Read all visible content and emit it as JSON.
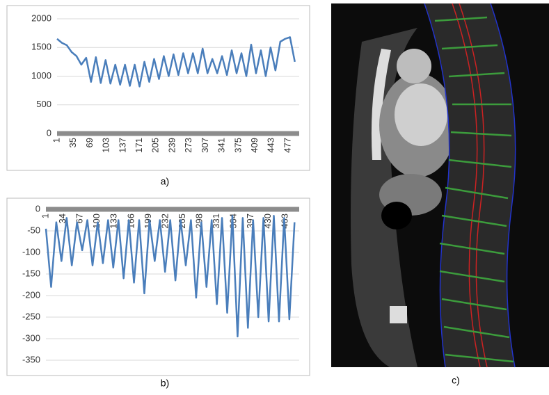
{
  "chart_data": [
    {
      "type": "line",
      "caption": "a)",
      "color": "#4a7ebb",
      "grid": true,
      "ylim": [
        0,
        2000
      ],
      "yticks": [
        0,
        500,
        1000,
        1500,
        2000
      ],
      "xlim": [
        1,
        500
      ],
      "xticks": [
        1,
        35,
        69,
        103,
        137,
        171,
        205,
        239,
        273,
        307,
        341,
        375,
        409,
        443,
        477
      ],
      "x": [
        1,
        11,
        21,
        31,
        41,
        51,
        61,
        71,
        81,
        91,
        101,
        111,
        121,
        131,
        141,
        151,
        161,
        171,
        181,
        191,
        201,
        211,
        221,
        231,
        241,
        251,
        261,
        271,
        281,
        291,
        301,
        311,
        321,
        331,
        341,
        351,
        361,
        371,
        381,
        391,
        401,
        411,
        421,
        431,
        441,
        451,
        461,
        471,
        481,
        491
      ],
      "values": [
        1650,
        1580,
        1540,
        1420,
        1350,
        1200,
        1320,
        900,
        1330,
        880,
        1280,
        870,
        1200,
        850,
        1200,
        830,
        1200,
        820,
        1250,
        900,
        1300,
        950,
        1350,
        1000,
        1380,
        1020,
        1400,
        1050,
        1400,
        1050,
        1480,
        1050,
        1300,
        1050,
        1350,
        1020,
        1450,
        1050,
        1400,
        1000,
        1550,
        1050,
        1450,
        1000,
        1500,
        1100,
        1600,
        1650,
        1680,
        1250
      ]
    },
    {
      "type": "line",
      "caption": "b)",
      "color": "#4a7ebb",
      "grid": true,
      "ylim": [
        -350,
        0
      ],
      "yticks": [
        -350,
        -300,
        -250,
        -200,
        -150,
        -100,
        -50,
        0
      ],
      "xlim": [
        1,
        490
      ],
      "xticks": [
        1,
        34,
        67,
        100,
        133,
        166,
        199,
        232,
        265,
        298,
        331,
        364,
        397,
        430,
        463
      ],
      "x": [
        1,
        11,
        21,
        31,
        41,
        51,
        61,
        71,
        81,
        91,
        101,
        111,
        121,
        131,
        141,
        151,
        161,
        171,
        181,
        191,
        201,
        211,
        221,
        231,
        241,
        251,
        261,
        271,
        281,
        291,
        301,
        311,
        321,
        331,
        341,
        351,
        361,
        371,
        381,
        391,
        401,
        411,
        421,
        431,
        441,
        451,
        461,
        471,
        481
      ],
      "values": [
        -45,
        -180,
        -30,
        -120,
        -20,
        -130,
        -30,
        -95,
        -25,
        -130,
        -30,
        -125,
        -25,
        -135,
        -25,
        -160,
        -25,
        -170,
        -25,
        -195,
        -25,
        -120,
        -25,
        -145,
        -25,
        -165,
        -25,
        -130,
        -25,
        -205,
        -30,
        -180,
        -25,
        -220,
        -20,
        -240,
        -15,
        -295,
        -20,
        -275,
        -25,
        -250,
        -20,
        -260,
        -15,
        -260,
        -20,
        -255,
        -30
      ]
    }
  ],
  "image_panel": {
    "caption": "c)"
  }
}
